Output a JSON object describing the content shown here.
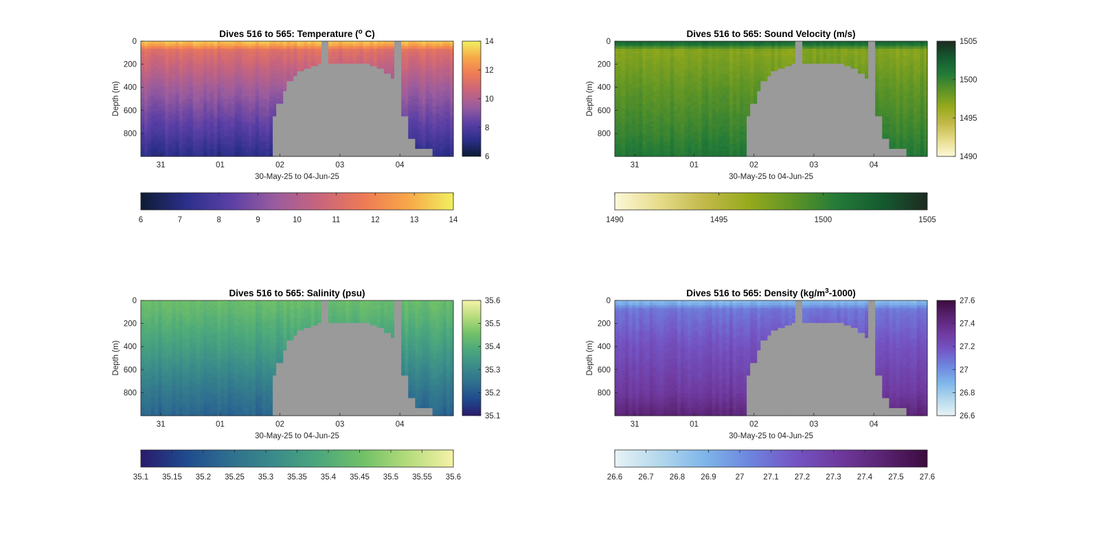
{
  "figure": {
    "background": "#ffffff",
    "mask_color": "#9a9a9a"
  },
  "chart_data": [
    {
      "type": "heatmap",
      "title": "Dives 516 to 565: Temperature (",
      "title_sup": "o",
      "title_suffix": " C)",
      "xlabel": "30-May-25 to 04-Jun-25",
      "ylabel": "Depth (m)",
      "x_ticks": [
        "31",
        "01",
        "02",
        "03",
        "04"
      ],
      "y_ticks": [
        "0",
        "200",
        "400",
        "600",
        "800"
      ],
      "x_range_days": [
        "2025-05-30T15:00",
        "2025-06-04T21:00"
      ],
      "y_range_m": [
        0,
        1000
      ],
      "colormap": [
        "#0d1b33",
        "#2b2f8a",
        "#5a3fa5",
        "#9a5c9e",
        "#c9657c",
        "#ee7a55",
        "#f8a848",
        "#f0f060"
      ],
      "clim": [
        6,
        14
      ],
      "side_colorbar_ticks": [
        "14",
        "12",
        "10",
        "8",
        "6"
      ],
      "bottom_colorbar_ticks": [
        "6",
        "7",
        "8",
        "9",
        "10",
        "11",
        "12",
        "13",
        "14"
      ],
      "profile": {
        "surface": 13.2,
        "shallow": 11.2,
        "mid": 9.6,
        "deep": 8.0,
        "bottom": 7.1
      }
    },
    {
      "type": "heatmap",
      "title": "Dives 516 to 565: Sound Velocity (m/s)",
      "title_sup": "",
      "title_suffix": "",
      "xlabel": "30-May-25 to 04-Jun-25",
      "ylabel": "Depth (m)",
      "x_ticks": [
        "31",
        "01",
        "02",
        "03",
        "04"
      ],
      "y_ticks": [
        "0",
        "200",
        "400",
        "600",
        "800"
      ],
      "x_range_days": [
        "2025-05-30T15:00",
        "2025-06-04T21:00"
      ],
      "y_range_m": [
        0,
        1000
      ],
      "colormap": [
        "#fdf8d8",
        "#e6dc8a",
        "#c2b94a",
        "#96aa1c",
        "#5e9426",
        "#237a38",
        "#145a2f",
        "#1d2a20"
      ],
      "clim": [
        1490,
        1505
      ],
      "side_colorbar_ticks": [
        "1505",
        "1500",
        "1495",
        "1490"
      ],
      "bottom_colorbar_ticks": [
        "1490",
        "1495",
        "1500",
        "1505"
      ],
      "profile": {
        "surface": 1502.0,
        "shallow": 1497.0,
        "mid": 1498.5,
        "deep": 1500.0,
        "bottom": 1501.0
      }
    },
    {
      "type": "heatmap",
      "title": "Dives 516 to 565: Salinity (psu)",
      "title_sup": "",
      "title_suffix": "",
      "xlabel": "30-May-25 to 04-Jun-25",
      "ylabel": "Depth (m)",
      "x_ticks": [
        "31",
        "01",
        "02",
        "03",
        "04"
      ],
      "y_ticks": [
        "0",
        "200",
        "400",
        "600",
        "800"
      ],
      "x_range_days": [
        "2025-05-30T15:00",
        "2025-06-04T21:00"
      ],
      "y_range_m": [
        0,
        1000
      ],
      "colormap": [
        "#2a1a6c",
        "#1f4a8e",
        "#2f6f8f",
        "#3a8c8a",
        "#4ca87c",
        "#72c167",
        "#b6dc7c",
        "#f5f2a8"
      ],
      "clim": [
        35.1,
        35.6
      ],
      "side_colorbar_ticks": [
        "35.6",
        "35.5",
        "35.4",
        "35.3",
        "35.2",
        "35.1"
      ],
      "bottom_colorbar_ticks": [
        "35.1",
        "35.15",
        "35.2",
        "35.25",
        "35.3",
        "35.35",
        "35.4",
        "35.45",
        "35.5",
        "35.55",
        "35.6"
      ],
      "profile": {
        "surface": 35.44,
        "shallow": 35.43,
        "mid": 35.36,
        "deep": 35.26,
        "bottom": 35.22
      }
    },
    {
      "type": "heatmap",
      "title": "Dives 516 to 565: Density (kg/m",
      "title_sup": "3",
      "title_suffix": "-1000)",
      "xlabel": "30-May-25 to 04-Jun-25",
      "ylabel": "Depth (m)",
      "x_ticks": [
        "31",
        "01",
        "02",
        "03",
        "04"
      ],
      "y_ticks": [
        "0",
        "200",
        "400",
        "600",
        "800"
      ],
      "x_range_days": [
        "2025-05-30T15:00",
        "2025-06-04T21:00"
      ],
      "y_range_m": [
        0,
        1000
      ],
      "colormap": [
        "#e8f3f6",
        "#b3d8ec",
        "#7fb6ea",
        "#6d86df",
        "#7456c5",
        "#6f3a9f",
        "#5a2373",
        "#3b0b3d"
      ],
      "clim": [
        26.6,
        27.6
      ],
      "side_colorbar_ticks": [
        "27.6",
        "27.4",
        "27.2",
        "27",
        "26.8",
        "26.6"
      ],
      "bottom_colorbar_ticks": [
        "26.6",
        "26.7",
        "26.8",
        "26.9",
        "27",
        "27.1",
        "27.2",
        "27.3",
        "27.4",
        "27.5",
        "27.6"
      ],
      "profile": {
        "surface": 26.88,
        "shallow": 27.08,
        "mid": 27.2,
        "deep": 27.32,
        "bottom": 27.45
      }
    }
  ]
}
